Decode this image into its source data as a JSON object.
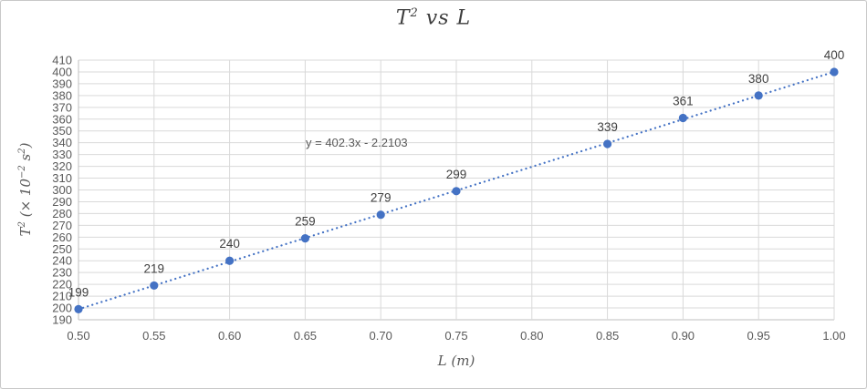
{
  "chart_title": {
    "base": "T",
    "sup": "2",
    "rest": " vs L"
  },
  "axes": {
    "x_title": "L (m)",
    "y_title_parts": {
      "p1": "T",
      "s1": "2",
      "p2": " (× 10",
      "s2": "−2",
      "p3": " s",
      "s3": "2",
      "p4": ")"
    }
  },
  "colors": {
    "background": "#FFFFFF",
    "border": "#C8C8C8",
    "grid": "#D9D9D9",
    "axis_line": "#BFBFBF",
    "tick_text": "#595959",
    "data_label_text": "#404040",
    "equation_text": "#595959",
    "marker": "#4472C4",
    "trendline": "#4472C4"
  },
  "chart_data": {
    "type": "scatter",
    "title": "T² vs L",
    "xlabel": "L (m)",
    "ylabel": "T² (× 10⁻² s²)",
    "x": [
      0.5,
      0.55,
      0.6,
      0.65,
      0.7,
      0.75,
      0.85,
      0.9,
      0.95,
      1.0
    ],
    "y": [
      199,
      219,
      240,
      259,
      279,
      299,
      339,
      361,
      380,
      400
    ],
    "point_labels": [
      "199",
      "219",
      "240",
      "259",
      "279",
      "299",
      "339",
      "361",
      "380",
      "400"
    ],
    "trendline": {
      "type": "linear",
      "slope": 402.3,
      "intercept": -2.2103,
      "equation_label": "y = 402.3x - 2.2103",
      "style": "dotted",
      "x_start": 0.5,
      "x_end": 1.0
    },
    "xlim": [
      0.5,
      1.0
    ],
    "x_tick_step": 0.05,
    "ylim": [
      190,
      410
    ],
    "y_tick_step": 10,
    "grid": "both",
    "legend": false
  }
}
